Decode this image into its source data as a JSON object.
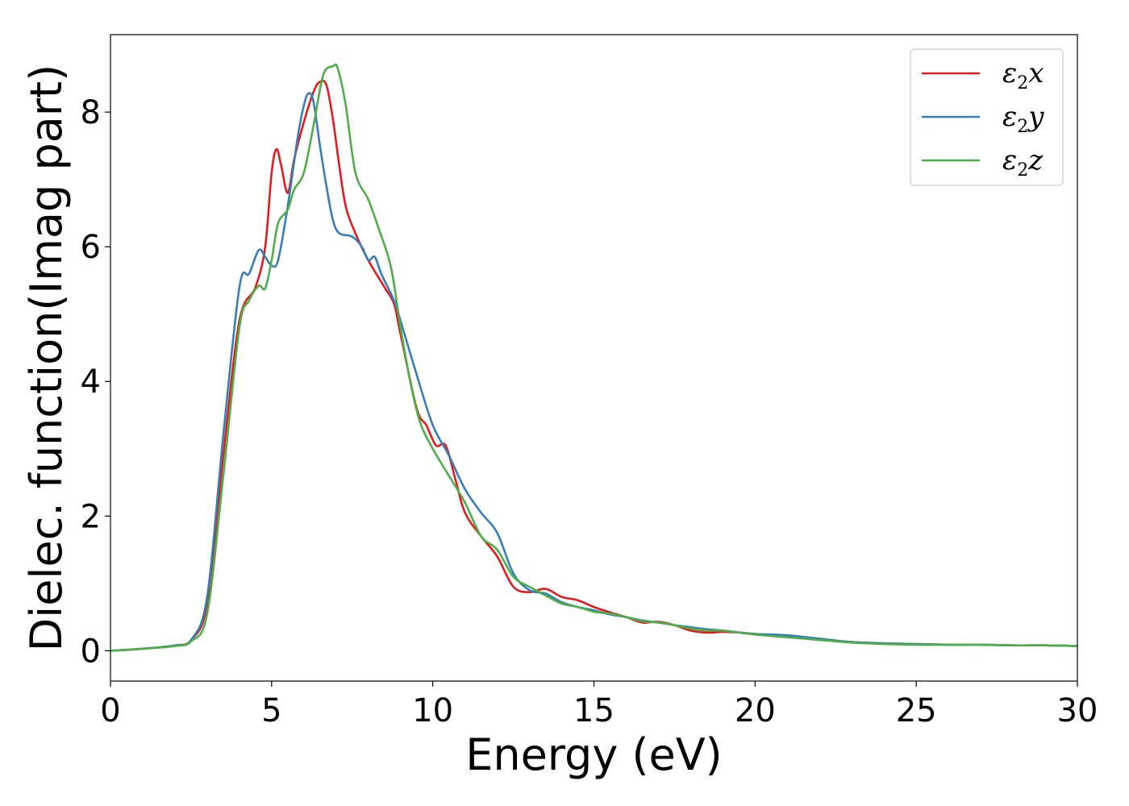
{
  "chart_data": {
    "type": "line",
    "title": "",
    "xlabel": "Energy (eV)",
    "ylabel": "Dielec. function(Imag part)",
    "xlim": [
      0,
      30
    ],
    "ylim": [
      -0.45,
      9.15
    ],
    "xticks": [
      0,
      5,
      10,
      15,
      20,
      25,
      30
    ],
    "yticks": [
      0,
      2,
      4,
      6,
      8
    ],
    "grid": false,
    "legend_position": "top-right",
    "series": [
      {
        "name": "ε2x",
        "legend": {
          "symbol": "ε",
          "sub": "2",
          "suffix": "x"
        },
        "color": "#e41a1c",
        "points": [
          [
            0,
            0
          ],
          [
            1,
            0.03
          ],
          [
            2,
            0.08
          ],
          [
            2.5,
            0.16
          ],
          [
            3,
            0.7
          ],
          [
            3.5,
            2.9
          ],
          [
            4,
            4.9
          ],
          [
            4.5,
            5.4
          ],
          [
            4.8,
            6.0
          ],
          [
            5,
            7.1
          ],
          [
            5.15,
            7.45
          ],
          [
            5.3,
            7.2
          ],
          [
            5.5,
            6.8
          ],
          [
            5.7,
            7.3
          ],
          [
            6.0,
            7.85
          ],
          [
            6.3,
            8.3
          ],
          [
            6.5,
            8.45
          ],
          [
            6.7,
            8.4
          ],
          [
            6.9,
            7.9
          ],
          [
            7.1,
            7.2
          ],
          [
            7.3,
            6.6
          ],
          [
            7.6,
            6.2
          ],
          [
            8,
            5.8
          ],
          [
            8.5,
            5.4
          ],
          [
            8.8,
            5.15
          ],
          [
            9,
            4.7
          ],
          [
            9.5,
            3.6
          ],
          [
            9.8,
            3.35
          ],
          [
            10.1,
            3.05
          ],
          [
            10.4,
            3.05
          ],
          [
            10.7,
            2.55
          ],
          [
            11,
            2.05
          ],
          [
            11.5,
            1.7
          ],
          [
            12,
            1.4
          ],
          [
            12.5,
            0.95
          ],
          [
            13,
            0.87
          ],
          [
            13.5,
            0.92
          ],
          [
            14,
            0.8
          ],
          [
            14.5,
            0.75
          ],
          [
            15,
            0.65
          ],
          [
            15.5,
            0.57
          ],
          [
            16,
            0.5
          ],
          [
            16.5,
            0.42
          ],
          [
            17,
            0.43
          ],
          [
            17.5,
            0.38
          ],
          [
            18,
            0.3
          ],
          [
            18.5,
            0.27
          ],
          [
            19,
            0.28
          ],
          [
            19.5,
            0.27
          ],
          [
            20,
            0.25
          ],
          [
            20.5,
            0.23
          ],
          [
            21,
            0.22
          ],
          [
            21.5,
            0.2
          ],
          [
            22,
            0.18
          ],
          [
            22.5,
            0.15
          ],
          [
            23,
            0.13
          ],
          [
            24,
            0.11
          ],
          [
            25,
            0.1
          ],
          [
            26,
            0.09
          ],
          [
            27,
            0.09
          ],
          [
            28,
            0.08
          ],
          [
            29,
            0.08
          ],
          [
            30,
            0.07
          ]
        ]
      },
      {
        "name": "ε2y",
        "legend": {
          "symbol": "ε",
          "sub": "2",
          "suffix": "y"
        },
        "color": "#377eb8",
        "points": [
          [
            0,
            0
          ],
          [
            1,
            0.03
          ],
          [
            2,
            0.08
          ],
          [
            2.5,
            0.16
          ],
          [
            3,
            0.8
          ],
          [
            3.5,
            3.2
          ],
          [
            4,
            5.4
          ],
          [
            4.3,
            5.6
          ],
          [
            4.6,
            5.95
          ],
          [
            4.8,
            5.85
          ],
          [
            5,
            5.72
          ],
          [
            5.2,
            5.8
          ],
          [
            5.5,
            6.6
          ],
          [
            5.8,
            7.6
          ],
          [
            6.0,
            8.1
          ],
          [
            6.15,
            8.28
          ],
          [
            6.3,
            8.15
          ],
          [
            6.5,
            7.5
          ],
          [
            6.7,
            6.9
          ],
          [
            6.9,
            6.4
          ],
          [
            7.1,
            6.2
          ],
          [
            7.5,
            6.15
          ],
          [
            7.8,
            6.0
          ],
          [
            8.0,
            5.8
          ],
          [
            8.2,
            5.85
          ],
          [
            8.4,
            5.6
          ],
          [
            8.8,
            5.2
          ],
          [
            9.0,
            4.9
          ],
          [
            9.5,
            4.1
          ],
          [
            10,
            3.35
          ],
          [
            10.5,
            2.9
          ],
          [
            11,
            2.4
          ],
          [
            11.5,
            2.05
          ],
          [
            12,
            1.75
          ],
          [
            12.5,
            1.15
          ],
          [
            13,
            0.9
          ],
          [
            13.5,
            0.85
          ],
          [
            14,
            0.72
          ],
          [
            14.5,
            0.65
          ],
          [
            15,
            0.6
          ],
          [
            15.5,
            0.54
          ],
          [
            16,
            0.5
          ],
          [
            16.5,
            0.45
          ],
          [
            17,
            0.42
          ],
          [
            17.5,
            0.38
          ],
          [
            18,
            0.35
          ],
          [
            18.5,
            0.32
          ],
          [
            19,
            0.3
          ],
          [
            19.5,
            0.27
          ],
          [
            20,
            0.25
          ],
          [
            21,
            0.23
          ],
          [
            22,
            0.18
          ],
          [
            23,
            0.13
          ],
          [
            24,
            0.11
          ],
          [
            25,
            0.1
          ],
          [
            26,
            0.09
          ],
          [
            27,
            0.09
          ],
          [
            28,
            0.08
          ],
          [
            29,
            0.08
          ],
          [
            30,
            0.07
          ]
        ]
      },
      {
        "name": "ε2z",
        "legend": {
          "symbol": "ε",
          "sub": "2",
          "suffix": "z"
        },
        "color": "#4daf4a",
        "points": [
          [
            0,
            0
          ],
          [
            1,
            0.03
          ],
          [
            2,
            0.07
          ],
          [
            2.5,
            0.14
          ],
          [
            3,
            0.55
          ],
          [
            3.5,
            2.6
          ],
          [
            4,
            4.8
          ],
          [
            4.3,
            5.2
          ],
          [
            4.6,
            5.42
          ],
          [
            4.8,
            5.38
          ],
          [
            5,
            5.8
          ],
          [
            5.2,
            6.35
          ],
          [
            5.5,
            6.55
          ],
          [
            5.7,
            6.85
          ],
          [
            6.0,
            7.1
          ],
          [
            6.3,
            7.8
          ],
          [
            6.6,
            8.55
          ],
          [
            6.9,
            8.68
          ],
          [
            7.05,
            8.65
          ],
          [
            7.3,
            8.1
          ],
          [
            7.6,
            7.1
          ],
          [
            8.0,
            6.7
          ],
          [
            8.3,
            6.3
          ],
          [
            8.7,
            5.7
          ],
          [
            9,
            4.8
          ],
          [
            9.3,
            4.0
          ],
          [
            9.6,
            3.4
          ],
          [
            10,
            3.0
          ],
          [
            10.5,
            2.6
          ],
          [
            11,
            2.2
          ],
          [
            11.5,
            1.7
          ],
          [
            12,
            1.5
          ],
          [
            12.5,
            1.1
          ],
          [
            13,
            0.95
          ],
          [
            13.5,
            0.82
          ],
          [
            14,
            0.7
          ],
          [
            14.5,
            0.65
          ],
          [
            15,
            0.58
          ],
          [
            15.5,
            0.55
          ],
          [
            16,
            0.5
          ],
          [
            16.5,
            0.44
          ],
          [
            17,
            0.42
          ],
          [
            17.5,
            0.38
          ],
          [
            18,
            0.33
          ],
          [
            18.5,
            0.3
          ],
          [
            19,
            0.3
          ],
          [
            19.5,
            0.27
          ],
          [
            20,
            0.24
          ],
          [
            20.5,
            0.22
          ],
          [
            21,
            0.2
          ],
          [
            21.5,
            0.18
          ],
          [
            22,
            0.16
          ],
          [
            22.5,
            0.14
          ],
          [
            23,
            0.12
          ],
          [
            24,
            0.1
          ],
          [
            25,
            0.09
          ],
          [
            26,
            0.09
          ],
          [
            27,
            0.09
          ],
          [
            28,
            0.08
          ],
          [
            29,
            0.08
          ],
          [
            30,
            0.07
          ]
        ]
      }
    ]
  }
}
